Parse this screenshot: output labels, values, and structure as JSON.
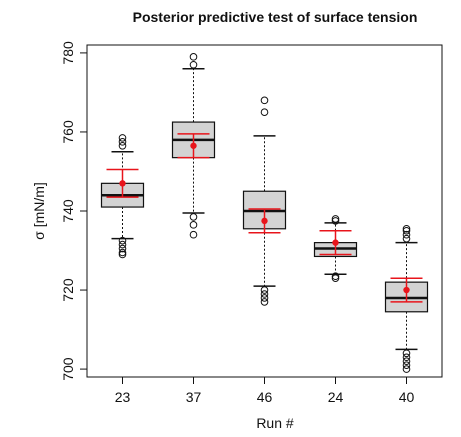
{
  "chart_data": {
    "type": "box",
    "title": "Posterior predictive test of surface tension",
    "xlabel": "Run #",
    "ylabel": "σ [mN/m]",
    "ylim": [
      698,
      782
    ],
    "yticks": [
      700,
      720,
      740,
      760,
      780
    ],
    "categories": [
      "23",
      "37",
      "46",
      "24",
      "40"
    ],
    "boxes": [
      {
        "category": "23",
        "whisker_low": 733,
        "q1": 741,
        "median": 744,
        "q3": 747,
        "whisker_high": 755,
        "outliers": [
          729,
          729.5,
          730.5,
          731.5,
          732.5,
          756.5,
          757.5,
          758.5
        ]
      },
      {
        "category": "37",
        "whisker_low": 739.5,
        "q1": 753.5,
        "median": 758,
        "q3": 762.5,
        "whisker_high": 776,
        "outliers": [
          734,
          736.5,
          738.5,
          777,
          779
        ]
      },
      {
        "category": "46",
        "whisker_low": 721,
        "q1": 735.5,
        "median": 740,
        "q3": 745,
        "whisker_high": 759,
        "outliers": [
          717,
          718,
          719,
          720,
          765,
          768
        ]
      },
      {
        "category": "24",
        "whisker_low": 724,
        "q1": 728.5,
        "median": 730.5,
        "q3": 732,
        "whisker_high": 737,
        "outliers": [
          723,
          723.5,
          737.5,
          738
        ]
      },
      {
        "category": "40",
        "whisker_low": 705,
        "q1": 714.5,
        "median": 718,
        "q3": 722,
        "whisker_high": 732,
        "outliers": [
          700,
          701,
          702,
          703,
          704,
          733,
          734,
          735,
          735.5
        ]
      }
    ],
    "measured": [
      {
        "category": "23",
        "mean": 747,
        "low": 743.5,
        "high": 750.5
      },
      {
        "category": "37",
        "mean": 756.5,
        "low": 753.5,
        "high": 759.5
      },
      {
        "category": "46",
        "mean": 737.5,
        "low": 734.5,
        "high": 740.5
      },
      {
        "category": "24",
        "mean": 732,
        "low": 729,
        "high": 735
      },
      {
        "category": "40",
        "mean": 720,
        "low": 717,
        "high": 723
      }
    ],
    "colors": {
      "box_fill": "#d3d3d3",
      "marker": "#e8141b",
      "outline": "#111111"
    },
    "grid": false
  }
}
